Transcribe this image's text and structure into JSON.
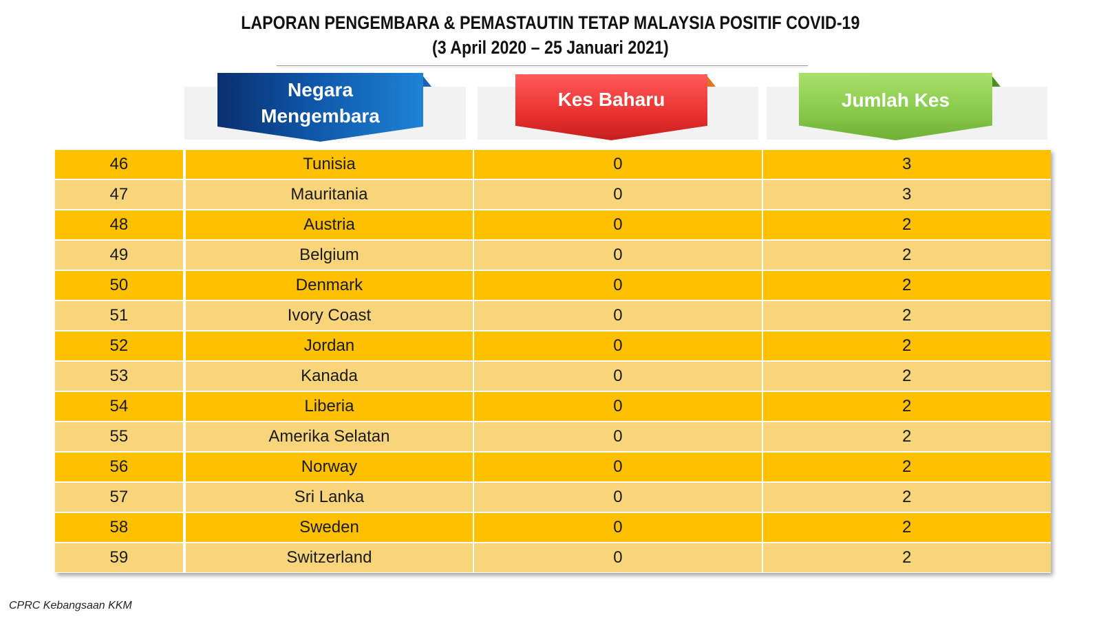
{
  "title": {
    "line1": "LAPORAN PENGEMBARA & PEMASTAUTIN TETAP MALAYSIA POSITIF COVID-19",
    "line2": "(3 April 2020 –  25 Januari 2021)"
  },
  "headers": {
    "country": "Negara Mengembara",
    "new_cases": "Kes Baharu",
    "total_cases": "Jumlah Kes"
  },
  "colors": {
    "row_dark": "#ffc000",
    "row_light": "#f8d57a",
    "header_blue": "#0e56a8",
    "header_red": "#e8322f",
    "header_green": "#86c94a"
  },
  "rows": [
    {
      "no": "46",
      "country": "Tunisia",
      "new": "0",
      "total": "3"
    },
    {
      "no": "47",
      "country": "Mauritania",
      "new": "0",
      "total": "3"
    },
    {
      "no": "48",
      "country": "Austria",
      "new": "0",
      "total": "2"
    },
    {
      "no": "49",
      "country": "Belgium",
      "new": "0",
      "total": "2"
    },
    {
      "no": "50",
      "country": "Denmark",
      "new": "0",
      "total": "2"
    },
    {
      "no": "51",
      "country": "Ivory Coast",
      "new": "0",
      "total": "2"
    },
    {
      "no": "52",
      "country": "Jordan",
      "new": "0",
      "total": "2"
    },
    {
      "no": "53",
      "country": "Kanada",
      "new": "0",
      "total": "2"
    },
    {
      "no": "54",
      "country": "Liberia",
      "new": "0",
      "total": "2"
    },
    {
      "no": "55",
      "country": "Amerika Selatan",
      "new": "0",
      "total": "2"
    },
    {
      "no": "56",
      "country": "Norway",
      "new": "0",
      "total": "2"
    },
    {
      "no": "57",
      "country": "Sri Lanka",
      "new": "0",
      "total": "2"
    },
    {
      "no": "58",
      "country": "Sweden",
      "new": "0",
      "total": "2"
    },
    {
      "no": "59",
      "country": "Switzerland",
      "new": "0",
      "total": "2"
    }
  ],
  "footer": "CPRC Kebangsaan KKM"
}
